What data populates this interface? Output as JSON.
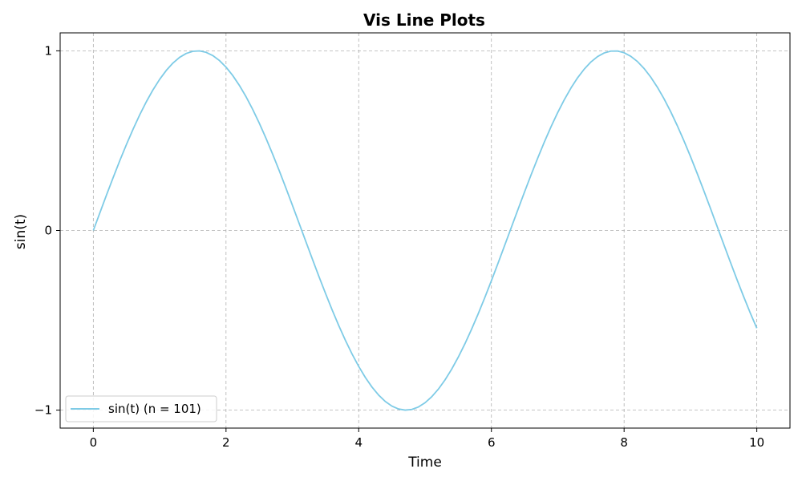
{
  "chart_data": {
    "type": "line",
    "title": "Vis Line Plots",
    "xlabel": "Time",
    "ylabel": "sin(t)",
    "xlim": [
      -0.5,
      10.5
    ],
    "ylim": [
      -1.1,
      1.1
    ],
    "x_ticks": [
      0,
      2,
      4,
      6,
      8,
      10
    ],
    "x_tick_labels": [
      "0",
      "2",
      "4",
      "6",
      "8",
      "10"
    ],
    "y_ticks": [
      -1,
      0,
      1
    ],
    "y_tick_labels": [
      "−1",
      "0",
      "1"
    ],
    "grid": true,
    "grid_style": "dashed",
    "legend_position": "lower-left",
    "series": [
      {
        "name": "sin(t) (n = 101)",
        "function": "sin",
        "x_start": 0,
        "x_end": 10,
        "n": 101,
        "color": "#7ecbe6"
      }
    ]
  }
}
